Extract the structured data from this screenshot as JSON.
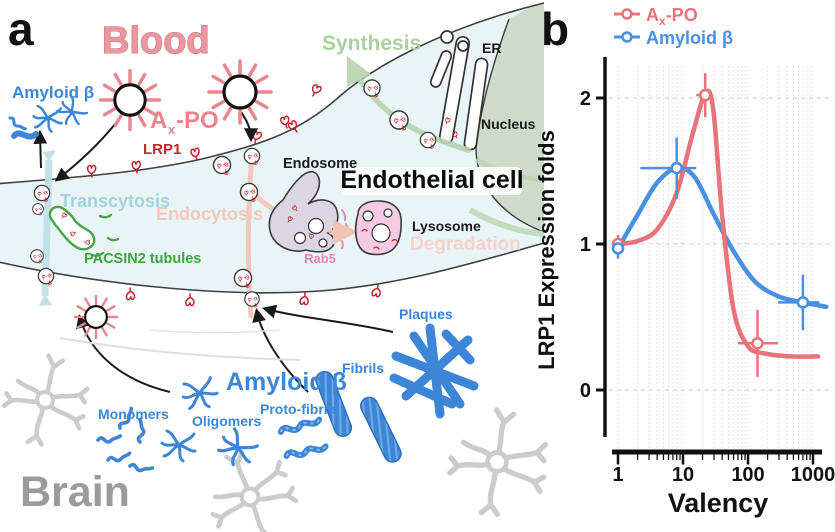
{
  "figure": {
    "panel_a_label": "a",
    "panel_b_label": "b",
    "blood": "Blood",
    "brain": "Brain",
    "amyloid_beta_blood": "Amyloid β",
    "axpo": {
      "prefix": "A",
      "sub": "x",
      "suffix": "-PO"
    },
    "lrp1": "LRP1",
    "transcytosis": "Transcytosis",
    "endocytosis": "Endocytosis",
    "pacsin2_tubules": "PACSIN2 tubules",
    "endosome": "Endosome",
    "endothelial_cell": "Endothelial cell",
    "rab5": "Rab5",
    "lysosome": "Lysosome",
    "degradation": "Degradation",
    "synthesis": "Synthesis",
    "er": "ER",
    "nucleus": "Nucleus",
    "species": {
      "monomers": "Monomers",
      "oligomers": "Oligomers",
      "amyloid_beta": "Amyloid β",
      "proto_fibrils": "Proto-fibrils",
      "fibrils": "Fibrils",
      "plaques": "Plaques"
    }
  },
  "colors": {
    "salmon_series": "#e8737b",
    "blue_series": "#4a90e2",
    "amyloid_blue": "#3d85d6",
    "lrp1_red": "#c4262e",
    "blood_label": "#ec97a0",
    "cell_fill": "#e9f4f6",
    "transcytosis_teal": "#a3d2de",
    "endocytosis_salmon": "#f4c8b9",
    "pacsin_green": "#3fa33f",
    "synthesis_green": "#accf9f",
    "nucleus_fill": "#cedbca",
    "endosome_fill": "#dbd6e3",
    "lysosome_fill": "#f5cbe4",
    "rab5_pink": "#e585b8",
    "degradation_pink": "#f5d3cb",
    "brain_gray": "#9b9b9b",
    "neuron_gray": "#cccccc"
  },
  "chart_data": {
    "type": "scatter-line",
    "title": "",
    "xlabel": "Valency",
    "ylabel": "LRP1 Expression folds",
    "x_scale": "log",
    "x_ticks": [
      1,
      10,
      100,
      1000
    ],
    "y_ticks": [
      0,
      1,
      2
    ],
    "xlim": [
      0.8,
      2000
    ],
    "ylim": [
      -0.35,
      2.3
    ],
    "grid": {
      "vertical": "log-minor dotted",
      "horizontal": "dashed at y ticks"
    },
    "legend": {
      "position": "top-left",
      "entries": [
        {
          "label": "Ax-PO",
          "label_parts": {
            "prefix": "A",
            "sub": "x",
            "suffix": "-PO"
          },
          "color": "#e8737b"
        },
        {
          "label": "Amyloid β",
          "color": "#4a90e2"
        }
      ]
    },
    "series": [
      {
        "name": "Ax-PO",
        "color": "#e8737b",
        "points": [
          {
            "x": 1,
            "y": 1.0,
            "ey": 0.06
          },
          {
            "x": 22,
            "y": 2.02,
            "ey": 0.15,
            "ex": [
              16,
              28
            ]
          },
          {
            "x": 140,
            "y": 0.32,
            "ey": 0.23,
            "ex": [
              70,
              290
            ]
          }
        ],
        "fit_curve": [
          [
            1,
            1.0
          ],
          [
            2,
            1.02
          ],
          [
            4,
            1.1
          ],
          [
            8,
            1.35
          ],
          [
            14,
            1.75
          ],
          [
            22,
            2.03
          ],
          [
            29,
            1.93
          ],
          [
            40,
            1.2
          ],
          [
            60,
            0.55
          ],
          [
            100,
            0.3
          ],
          [
            180,
            0.25
          ],
          [
            450,
            0.23
          ],
          [
            1200,
            0.23
          ]
        ]
      },
      {
        "name": "Amyloid β",
        "color": "#4a90e2",
        "points": [
          {
            "x": 1,
            "y": 0.97,
            "ey": 0.07
          },
          {
            "x": 8,
            "y": 1.52,
            "ey": 0.21,
            "ex": [
              2.2,
              16
            ]
          },
          {
            "x": 700,
            "y": 0.6,
            "ey": 0.19,
            "ex": [
              290,
              1250
            ]
          }
        ],
        "fit_curve": [
          [
            1,
            0.97
          ],
          [
            2,
            1.2
          ],
          [
            4,
            1.42
          ],
          [
            8,
            1.52
          ],
          [
            15,
            1.46
          ],
          [
            30,
            1.2
          ],
          [
            60,
            0.95
          ],
          [
            130,
            0.74
          ],
          [
            300,
            0.64
          ],
          [
            700,
            0.6
          ],
          [
            1600,
            0.57
          ]
        ]
      }
    ]
  }
}
